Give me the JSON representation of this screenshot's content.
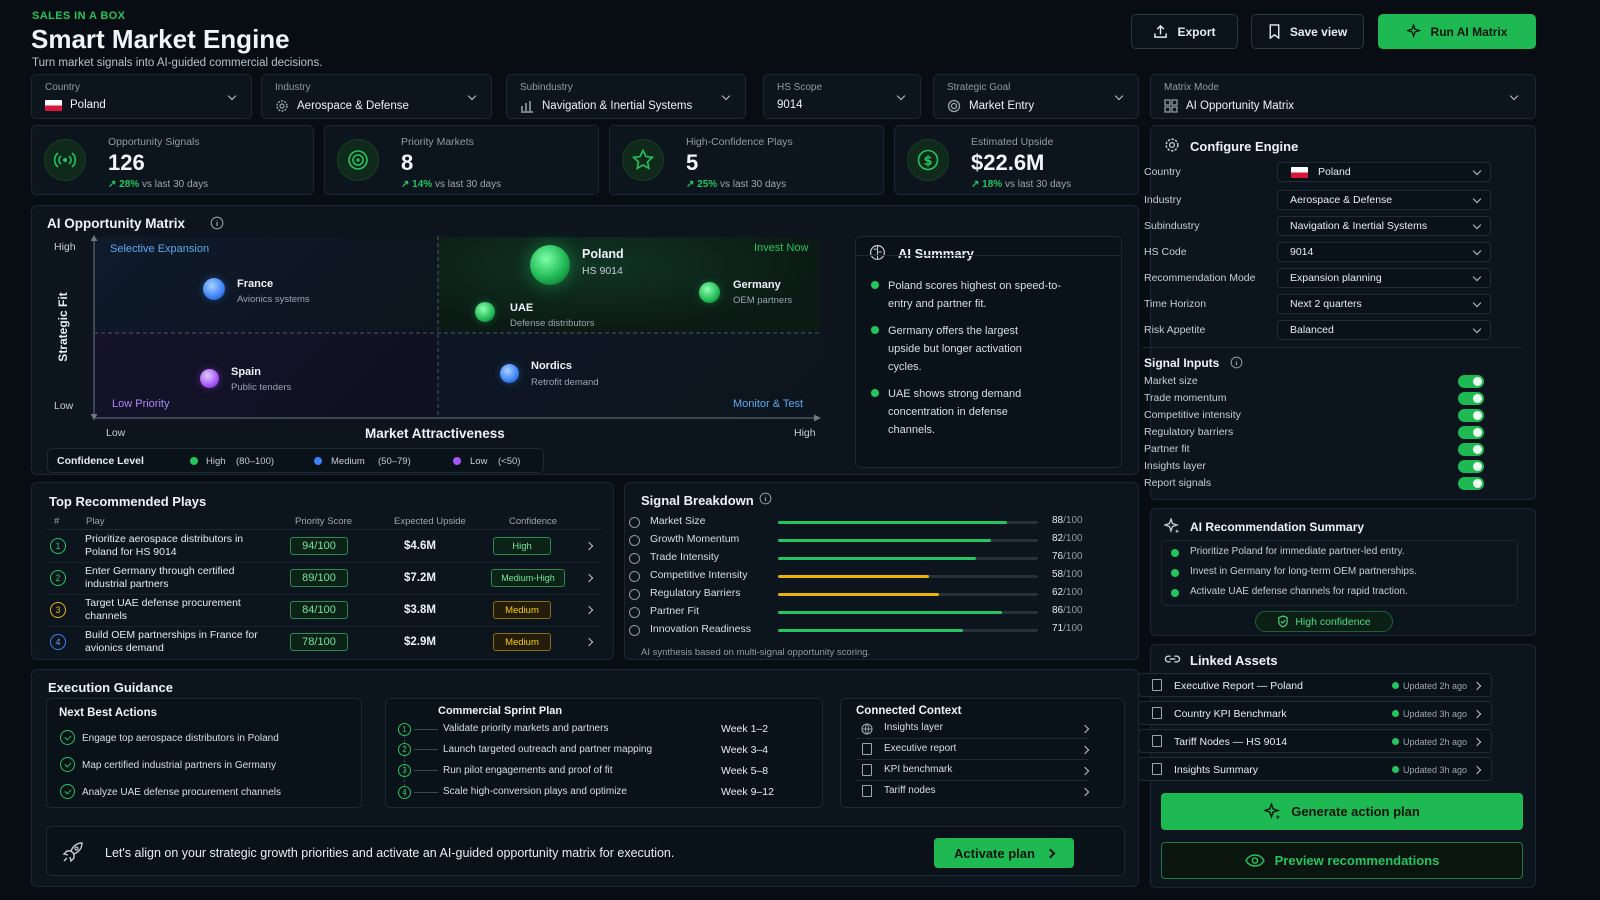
{
  "header": {
    "eyebrow": "SALES IN A BOX",
    "title": "Smart Market Engine",
    "subtitle": "Turn market signals into AI-guided commercial decisions.",
    "export_label": "Export",
    "save_view_label": "Save view",
    "run_label": "Run AI Matrix"
  },
  "filters": [
    {
      "label": "Country",
      "value": "Poland"
    },
    {
      "label": "Industry",
      "value": "Aerospace & Defense"
    },
    {
      "label": "Subindustry",
      "value": "Navigation & Inertial Systems"
    },
    {
      "label": "HS Scope",
      "value": "9014"
    },
    {
      "label": "Strategic Goal",
      "value": "Market Entry"
    },
    {
      "label": "Matrix Mode",
      "value": "AI Opportunity Matrix"
    }
  ],
  "kpis": [
    {
      "label": "Opportunity Signals",
      "value": "126",
      "delta": "28%",
      "note": "vs last 30 days"
    },
    {
      "label": "Priority Markets",
      "value": "8",
      "delta": "14%",
      "note": "vs last 30 days"
    },
    {
      "label": "High-Confidence Plays",
      "value": "5",
      "delta": "25%",
      "note": "vs last 30 days"
    },
    {
      "label": "Estimated Upside",
      "value": "$22.6M",
      "delta": "18%",
      "note": "vs last 30 days"
    }
  ],
  "matrix": {
    "title": "AI Opportunity Matrix",
    "y_axis": "Strategic Fit",
    "x_axis": "Market Attractiveness",
    "y_high": "High",
    "y_low": "Low",
    "x_low": "Low",
    "x_high": "High",
    "quadrants": {
      "top_left": "Selective Expansion",
      "top_right": "Invest Now",
      "bottom_left": "Low Priority",
      "bottom_right": "Monitor & Test"
    },
    "points": [
      {
        "name": "Poland",
        "desc": "HS 9014"
      },
      {
        "name": "France",
        "desc": "Avionics systems"
      },
      {
        "name": "Germany",
        "desc": "OEM partners"
      },
      {
        "name": "UAE",
        "desc": "Defense distributors"
      },
      {
        "name": "Spain",
        "desc": "Public tenders"
      },
      {
        "name": "Nordics",
        "desc": "Retrofit demand"
      }
    ],
    "confidence": {
      "label": "Confidence Level",
      "high": "High",
      "high_range": "(80–100)",
      "medium": "Medium",
      "medium_range": "(50–79)",
      "low": "Low",
      "low_range": "(<50)"
    }
  },
  "ai_summary": {
    "title": "AI Summary",
    "bullets": [
      "Poland scores highest on speed-to-entry and partner fit.",
      "Germany offers the largest upside but longer activation cycles.",
      "UAE shows strong demand concentration in defense channels."
    ]
  },
  "config": {
    "title": "Configure Engine",
    "rows": [
      {
        "label": "Country",
        "value": "Poland"
      },
      {
        "label": "Industry",
        "value": "Aerospace & Defense"
      },
      {
        "label": "Subindustry",
        "value": "Navigation & Inertial Systems"
      },
      {
        "label": "HS Code",
        "value": "9014"
      },
      {
        "label": "Recommendation Mode",
        "value": "Expansion planning"
      },
      {
        "label": "Time Horizon",
        "value": "Next 2 quarters"
      },
      {
        "label": "Risk Appetite",
        "value": "Balanced"
      }
    ],
    "signal_inputs_title": "Signal Inputs",
    "signal_inputs": [
      "Market size",
      "Trade momentum",
      "Competitive intensity",
      "Regulatory barriers",
      "Partner fit",
      "Insights layer",
      "Report signals"
    ]
  },
  "plays": {
    "title": "Top Recommended Plays",
    "headers": {
      "num": "#",
      "play": "Play",
      "score": "Priority Score",
      "upside": "Expected Upside",
      "confidence": "Confidence"
    },
    "rows": [
      {
        "num": "1",
        "play": "Prioritize aerospace distributors in Poland for HS 9014",
        "score": "94/100",
        "upside": "$4.6M",
        "confidence": "High"
      },
      {
        "num": "2",
        "play": "Enter Germany through certified industrial partners",
        "score": "89/100",
        "upside": "$7.2M",
        "confidence": "Medium-High"
      },
      {
        "num": "3",
        "play": "Target UAE defense procurement channels",
        "score": "84/100",
        "upside": "$3.8M",
        "confidence": "Medium"
      },
      {
        "num": "4",
        "play": "Build OEM partnerships in France for avionics demand",
        "score": "78/100",
        "upside": "$2.9M",
        "confidence": "Medium"
      }
    ]
  },
  "signals": {
    "title": "Signal Breakdown",
    "items": [
      {
        "label": "Market Size",
        "score": "88",
        "value": 88,
        "color": "#22c55e"
      },
      {
        "label": "Growth Momentum",
        "score": "82",
        "value": 82,
        "color": "#22c55e"
      },
      {
        "label": "Trade Intensity",
        "score": "76",
        "value": 76,
        "color": "#22c55e"
      },
      {
        "label": "Competitive Intensity",
        "score": "58",
        "value": 58,
        "color": "#eab308"
      },
      {
        "label": "Regulatory Barriers",
        "score": "62",
        "value": 62,
        "color": "#eab308"
      },
      {
        "label": "Partner Fit",
        "score": "86",
        "value": 86,
        "color": "#22c55e"
      },
      {
        "label": "Innovation Readiness",
        "score": "71",
        "value": 71,
        "color": "#22c55e"
      }
    ],
    "suffix": "/100",
    "footnote": "AI synthesis based on multi-signal opportunity scoring."
  },
  "rec_summary": {
    "title": "AI Recommendation Summary",
    "bullets": [
      "Prioritize Poland for immediate partner-led entry.",
      "Invest in Germany for long-term OEM partnerships.",
      "Activate UAE defense channels for rapid traction."
    ],
    "badge": "High confidence"
  },
  "execution": {
    "title": "Execution Guidance",
    "nba_title": "Next Best Actions",
    "nba": [
      "Engage top aerospace distributors in Poland",
      "Map certified industrial partners in Germany",
      "Analyze UAE defense procurement channels"
    ],
    "sprint_title": "Commercial Sprint Plan",
    "sprint": [
      {
        "num": "1",
        "text": "Validate priority markets and partners",
        "week": "Week 1–2"
      },
      {
        "num": "2",
        "text": "Launch targeted outreach and partner mapping",
        "week": "Week 3–4"
      },
      {
        "num": "3",
        "text": "Run pilot engagements and proof of fit",
        "week": "Week 5–8"
      },
      {
        "num": "4",
        "text": "Scale high-conversion plays and optimize",
        "week": "Week 9–12"
      }
    ],
    "context_title": "Connected Context",
    "context": [
      "Insights layer",
      "Executive report",
      "KPI benchmark",
      "Tariff nodes"
    ]
  },
  "banner": {
    "text": "Let's align on your strategic growth priorities and activate an AI-guided opportunity matrix for execution.",
    "button": "Activate plan"
  },
  "linked_assets": {
    "title": "Linked Assets",
    "items": [
      {
        "name": "Executive Report — Poland",
        "updated": "Updated 2h ago"
      },
      {
        "name": "Country KPI Benchmark",
        "updated": "Updated 3h ago"
      },
      {
        "name": "Tariff Nodes — HS 9014",
        "updated": "Updated 2h ago"
      },
      {
        "name": "Insights Summary",
        "updated": "Updated 3h ago"
      }
    ]
  },
  "actions": {
    "generate": "Generate action plan",
    "preview": "Preview recommendations"
  }
}
